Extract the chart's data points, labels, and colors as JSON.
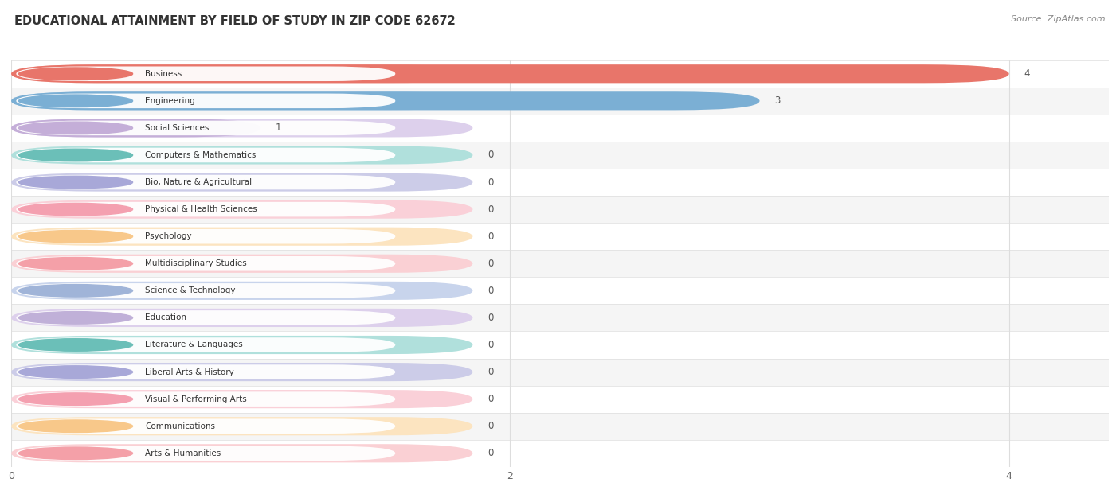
{
  "title": "EDUCATIONAL ATTAINMENT BY FIELD OF STUDY IN ZIP CODE 62672",
  "source": "Source: ZipAtlas.com",
  "categories": [
    "Business",
    "Engineering",
    "Social Sciences",
    "Computers & Mathematics",
    "Bio, Nature & Agricultural",
    "Physical & Health Sciences",
    "Psychology",
    "Multidisciplinary Studies",
    "Science & Technology",
    "Education",
    "Literature & Languages",
    "Liberal Arts & History",
    "Visual & Performing Arts",
    "Communications",
    "Arts & Humanities"
  ],
  "values": [
    4,
    3,
    1,
    0,
    0,
    0,
    0,
    0,
    0,
    0,
    0,
    0,
    0,
    0,
    0
  ],
  "bar_colors": [
    "#E8756A",
    "#7BAFD4",
    "#C4AED8",
    "#6BBFB8",
    "#A8A8D8",
    "#F4A0B0",
    "#F8C88A",
    "#F4A0A8",
    "#A0B4D8",
    "#C0B0D8",
    "#6BBFB8",
    "#A8A8D8",
    "#F4A0B0",
    "#F8C88A",
    "#F4A0A8"
  ],
  "bar_light_colors": [
    "#F4C0BA",
    "#C0D8EE",
    "#DDD0EC",
    "#B0E0DC",
    "#CCCCE8",
    "#FAD0D8",
    "#FCE4C0",
    "#FAD0D4",
    "#C8D4EC",
    "#DDD0EC",
    "#B0E0DC",
    "#CCCCE8",
    "#FAD0D8",
    "#FCE4C0",
    "#FAD0D4"
  ],
  "xlim": [
    0,
    4.4
  ],
  "xticks": [
    0,
    2,
    4
  ],
  "background_color": "#ffffff",
  "row_alt_color": "#f5f5f5",
  "title_fontsize": 10.5,
  "source_fontsize": 8
}
